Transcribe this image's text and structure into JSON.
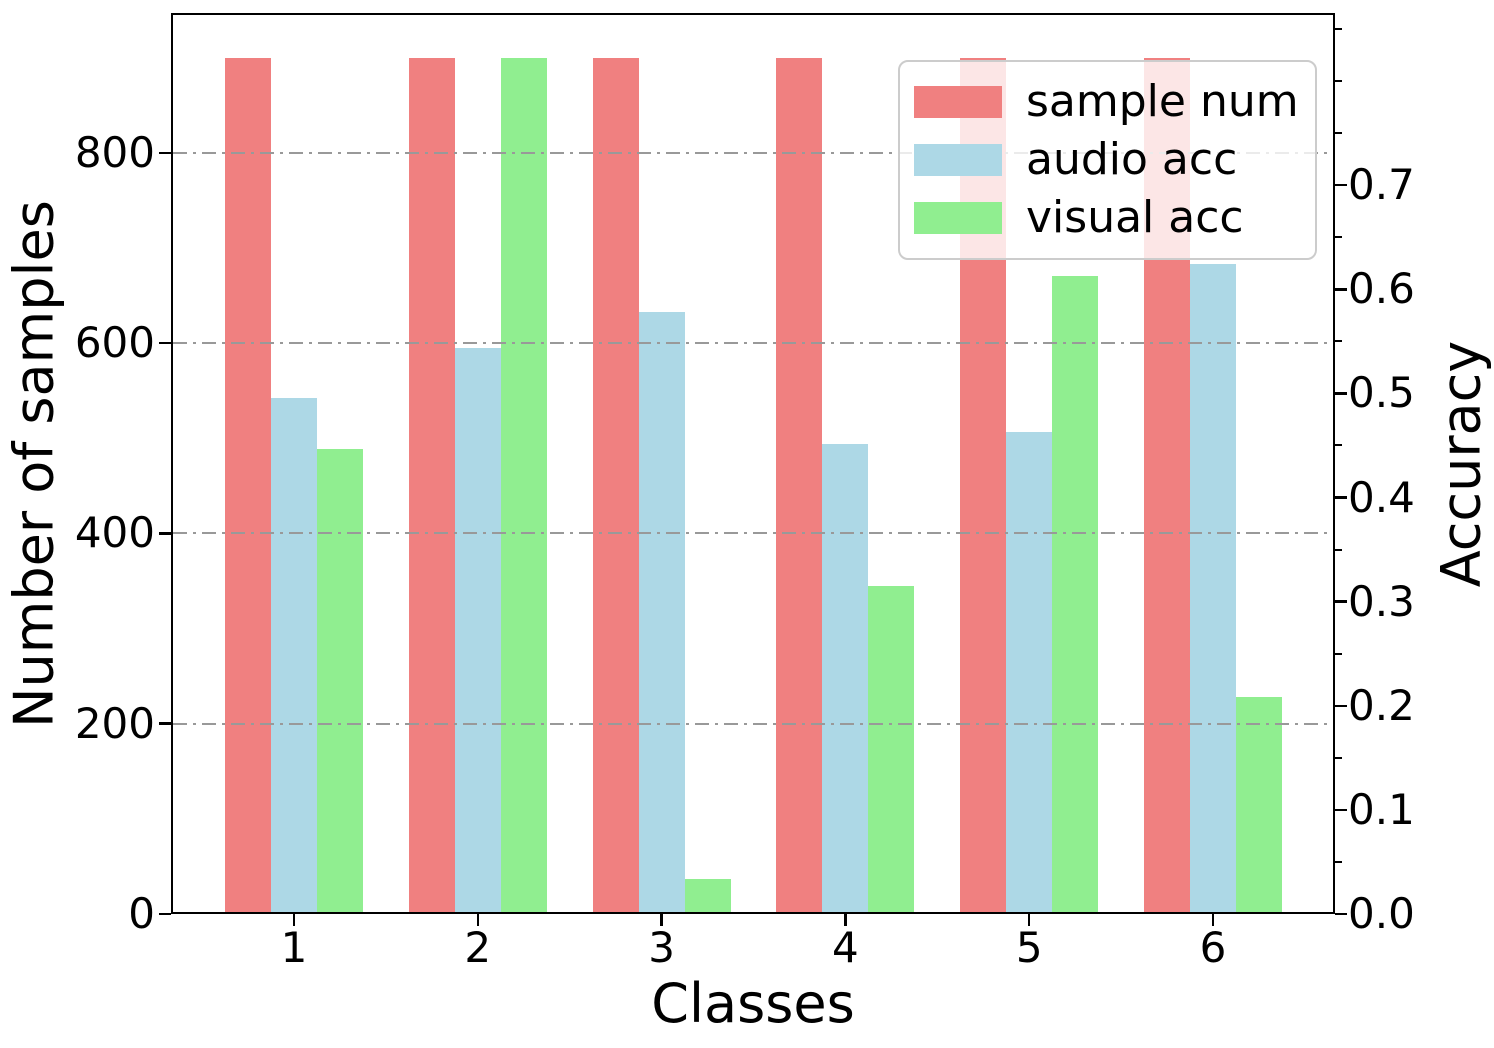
{
  "figure": {
    "background": "#ffffff"
  },
  "chart_data": {
    "type": "bar",
    "title": "",
    "xlabel": "Classes",
    "categories": [
      "1",
      "2",
      "3",
      "4",
      "5",
      "6"
    ],
    "series": [
      {
        "name": "sample num",
        "axis": "left",
        "color": "#F08080",
        "values": [
          900,
          900,
          900,
          900,
          900,
          900
        ]
      },
      {
        "name": "audio acc",
        "axis": "right",
        "color": "#ADD8E6",
        "values": [
          0.496,
          0.544,
          0.578,
          0.451,
          0.463,
          0.624
        ]
      },
      {
        "name": "visual acc",
        "axis": "right",
        "color": "#90EE90",
        "values": [
          0.447,
          0.822,
          0.034,
          0.315,
          0.613,
          0.208
        ]
      }
    ],
    "left_axis": {
      "label": "Number of samples",
      "tick_labels": [
        "0",
        "200",
        "400",
        "600",
        "800"
      ],
      "tick_values": [
        0,
        200,
        400,
        600,
        800
      ],
      "range": [
        0,
        945
      ]
    },
    "right_axis": {
      "label": "Accuracy",
      "tick_labels": [
        "0.0",
        "0.1",
        "0.2",
        "0.3",
        "0.4",
        "0.5",
        "0.6",
        "0.7"
      ],
      "tick_values": [
        0,
        0.1,
        0.2,
        0.3,
        0.4,
        0.5,
        0.6,
        0.7
      ],
      "minor_tick_values": [
        0.05,
        0.15,
        0.25,
        0.35,
        0.45,
        0.55,
        0.65,
        0.75,
        0.8,
        0.85
      ],
      "range": [
        0,
        0.8635
      ]
    },
    "grid": {
      "on": true,
      "values": [
        200,
        400,
        600,
        800
      ],
      "color": "#999999",
      "style": "dashdot",
      "above_bars": true
    },
    "legend": {
      "position": "upper right",
      "entries": [
        "sample num",
        "audio acc",
        "visual acc"
      ]
    }
  }
}
